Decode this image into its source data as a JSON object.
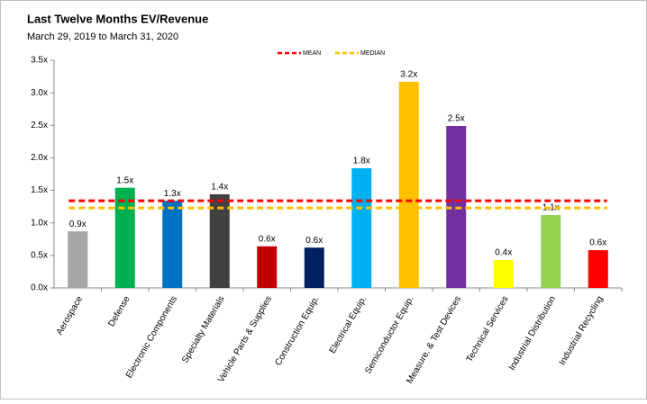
{
  "chart_data": {
    "type": "bar",
    "title": "Last Twelve Months EV/Revenue",
    "subtitle": "March 29, 2019 to March 31, 2020",
    "categories": [
      "Aerospace",
      "Defense",
      "Electronic Components",
      "Specialty Materials",
      "Vehicle Parts & Supplies",
      "Construction Equip.",
      "Electrical Equip.",
      "Semiconductor Equip.",
      "Measure. & Test Devices",
      "Technical Services",
      "Industrial Distribution",
      "Industrial Recycling"
    ],
    "values": [
      0.87,
      1.54,
      1.34,
      1.44,
      0.64,
      0.62,
      1.84,
      3.17,
      2.49,
      0.43,
      1.12,
      0.58
    ],
    "value_labels": [
      "0.9x",
      "1.5x",
      "1.3x",
      "1.4x",
      "0.6x",
      "0.6x",
      "1.8x",
      "3.2x",
      "2.5x",
      "0.4x",
      "1.1x",
      "0.6x"
    ],
    "colors": [
      "#a6a6a6",
      "#00b050",
      "#0070c0",
      "#404040",
      "#c00000",
      "#002060",
      "#00b0f0",
      "#ffc000",
      "#7030a0",
      "#ffff00",
      "#92d050",
      "#ff0000"
    ],
    "reference_lines": [
      {
        "name": "MEAN",
        "value": 1.34,
        "color": "#ff0000"
      },
      {
        "name": "MEDIAN",
        "value": 1.23,
        "color": "#ffc000"
      }
    ],
    "ylim": [
      0,
      3.5
    ],
    "yticks": [
      {
        "value": 0,
        "label": "0.0x"
      },
      {
        "value": 0.5,
        "label": "0.5x"
      },
      {
        "value": 1,
        "label": "1.0x"
      },
      {
        "value": 1.5,
        "label": "1.5x"
      },
      {
        "value": 2,
        "label": "2.0x"
      },
      {
        "value": 2.5,
        "label": "2.5x"
      },
      {
        "value": 3,
        "label": "3.0x"
      },
      {
        "value": 3.5,
        "label": "3.5x"
      }
    ],
    "grid": false
  }
}
